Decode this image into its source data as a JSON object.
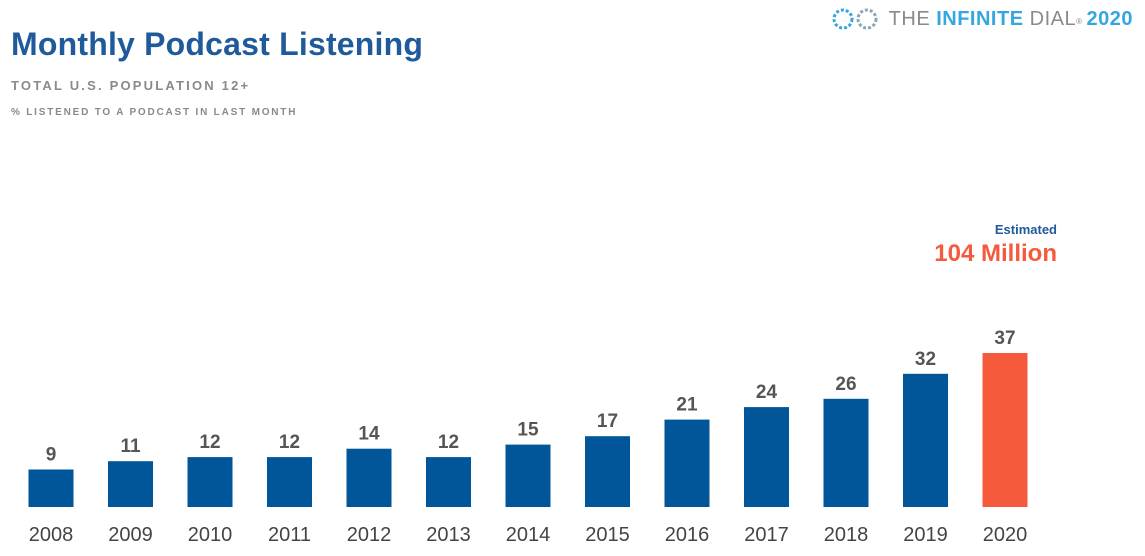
{
  "header": {
    "title": "Monthly Podcast Listening",
    "subtitle": "TOTAL U.S. POPULATION 12+",
    "note": "% LISTENED TO A PODCAST IN LAST MONTH"
  },
  "brand": {
    "prefix": "THE",
    "bold": "INFINITE",
    "suffix": "DIAL",
    "mark": "®",
    "year": "2020",
    "icon": "infinity-logo-icon"
  },
  "annotation": {
    "label": "Estimated",
    "value": "104 Million"
  },
  "colors": {
    "bar": "#005698",
    "highlight": "#f55a3c",
    "title": "#1f5a9a"
  },
  "chart_data": {
    "type": "bar",
    "categories": [
      "2008",
      "2009",
      "2010",
      "2011",
      "2012",
      "2013",
      "2014",
      "2015",
      "2016",
      "2017",
      "2018",
      "2019",
      "2020"
    ],
    "values": [
      9,
      11,
      12,
      12,
      14,
      12,
      15,
      17,
      21,
      24,
      26,
      32,
      37
    ],
    "highlight_index": 12,
    "title": "Monthly Podcast Listening",
    "xlabel": "",
    "ylabel": "",
    "ylim": [
      0,
      37
    ],
    "grid": false,
    "legend": "none"
  }
}
